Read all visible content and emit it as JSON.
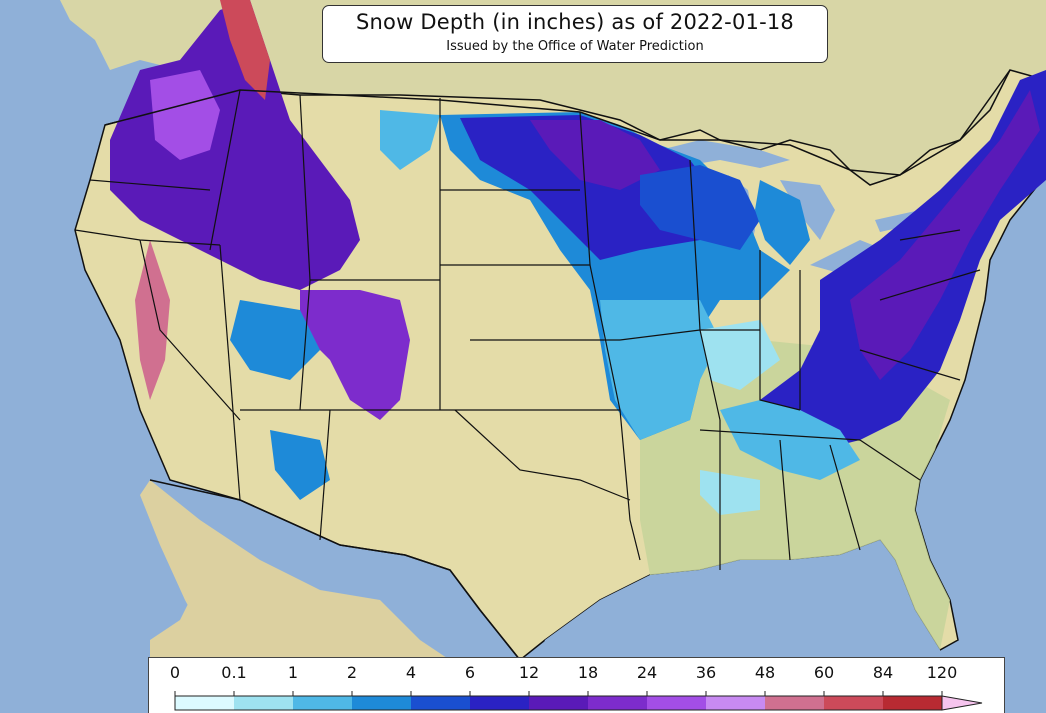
{
  "title": "Snow Depth (in inches) as of 2022-01-18",
  "subtitle": "Issued by the Office of Water Prediction",
  "legend": {
    "ticks": [
      "0",
      "0.1",
      "1",
      "2",
      "4",
      "6",
      "12",
      "18",
      "24",
      "36",
      "48",
      "60",
      "84",
      "120"
    ],
    "colors": [
      "#dcfaff",
      "#9ee2f0",
      "#4fb8e6",
      "#1e8ad8",
      "#1a4fd0",
      "#2a22c4",
      "#5a1ab8",
      "#7d2ccc",
      "#a34ee6",
      "#c88af2",
      "#d07090",
      "#cc4a5a",
      "#b82a32",
      "#a01818"
    ],
    "overflow_color": "#f6c4ee"
  },
  "colors": {
    "ocean": "#8fb0d8",
    "land": "#e4dca8",
    "land_green": "#b8cc90",
    "border": "#111111"
  }
}
